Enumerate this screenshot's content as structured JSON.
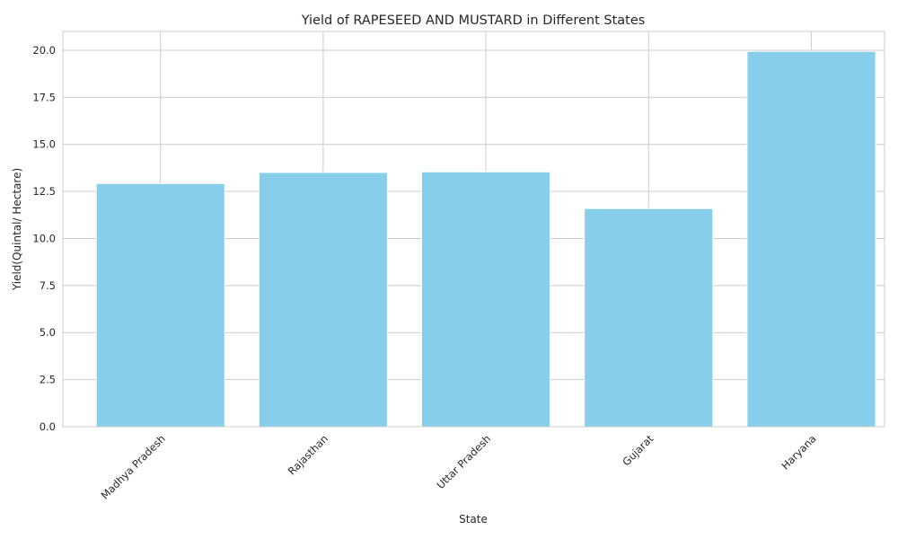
{
  "chart_data": {
    "type": "bar",
    "title": "Yield of RAPESEED AND MUSTARD in Different States",
    "xlabel": "State",
    "ylabel": "Yield(Quintal/ Hectare)",
    "categories": [
      "Madhya Pradesh",
      "Rajasthan",
      "Uttar Pradesh",
      "Gujarat",
      "Haryana"
    ],
    "values": [
      12.92,
      13.51,
      13.54,
      11.59,
      19.94
    ],
    "ylim": [
      0,
      21
    ],
    "yticks": [
      "0.0",
      "2.5",
      "5.0",
      "7.5",
      "10.0",
      "12.5",
      "15.0",
      "17.5",
      "20.0"
    ],
    "grid": true,
    "bar_color": "#87CEEB",
    "grid_color": "#cccccc"
  }
}
